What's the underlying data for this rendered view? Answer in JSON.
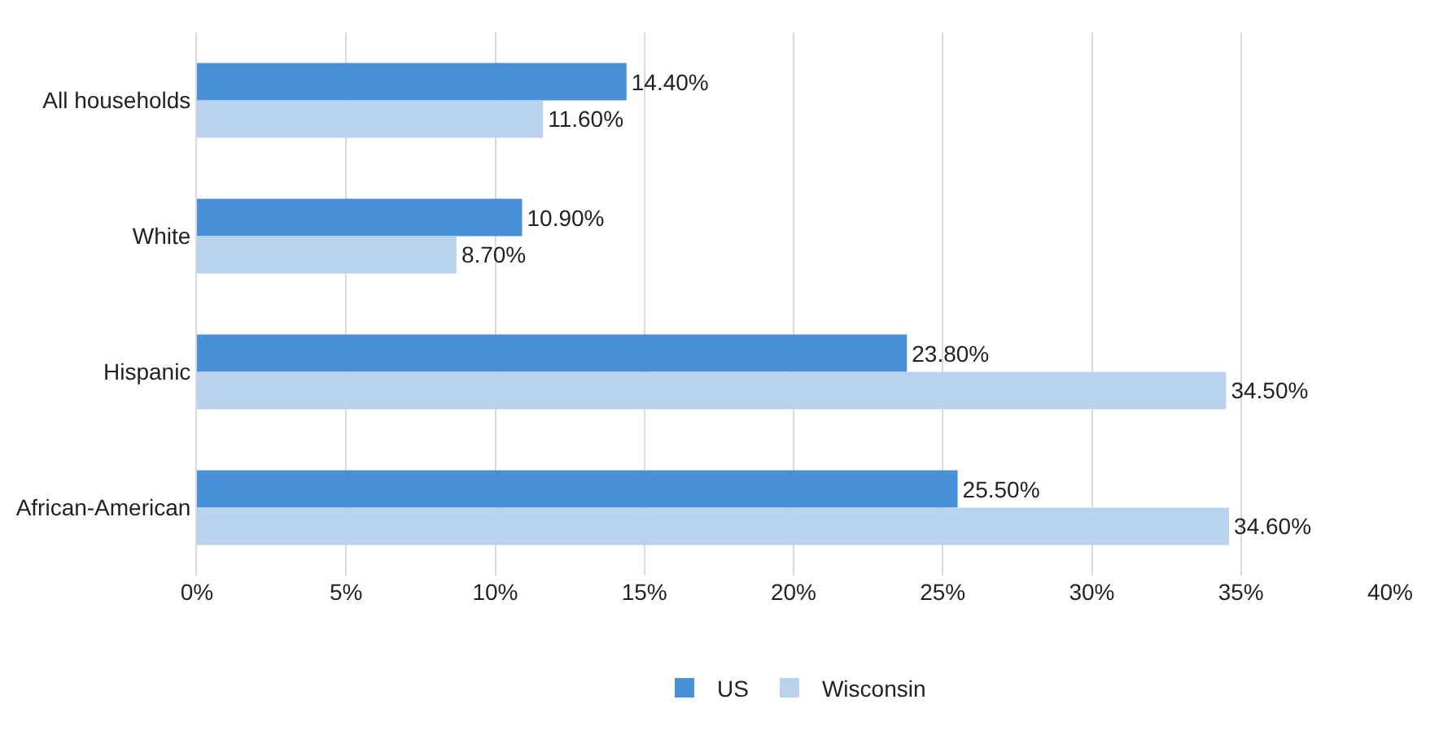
{
  "chart_data": {
    "type": "bar",
    "orientation": "horizontal",
    "categories": [
      "All households",
      "White",
      "Hispanic",
      "African-American"
    ],
    "series": [
      {
        "name": "US",
        "color": "#4a90d9",
        "values": [
          14.4,
          10.9,
          23.8,
          25.5
        ],
        "value_labels": [
          "14.40%",
          "10.90%",
          "23.80%",
          "25.50%"
        ]
      },
      {
        "name": "Wisconsin",
        "color": "#b9d3ee",
        "values": [
          11.6,
          8.7,
          34.5,
          34.6
        ],
        "value_labels": [
          "11.60%",
          "8.70%",
          "34.50%",
          "34.60%"
        ]
      }
    ],
    "xlim": [
      0,
      40
    ],
    "xticks": [
      {
        "value": 0,
        "label": "0%"
      },
      {
        "value": 5,
        "label": "5%"
      },
      {
        "value": 10,
        "label": "10%"
      },
      {
        "value": 15,
        "label": "15%"
      },
      {
        "value": 20,
        "label": "20%"
      },
      {
        "value": 25,
        "label": "25%"
      },
      {
        "value": 30,
        "label": "30%"
      },
      {
        "value": 35,
        "label": "35%"
      },
      {
        "value": 40,
        "label": "40%"
      }
    ],
    "grid": "x",
    "legend": "bottom"
  }
}
